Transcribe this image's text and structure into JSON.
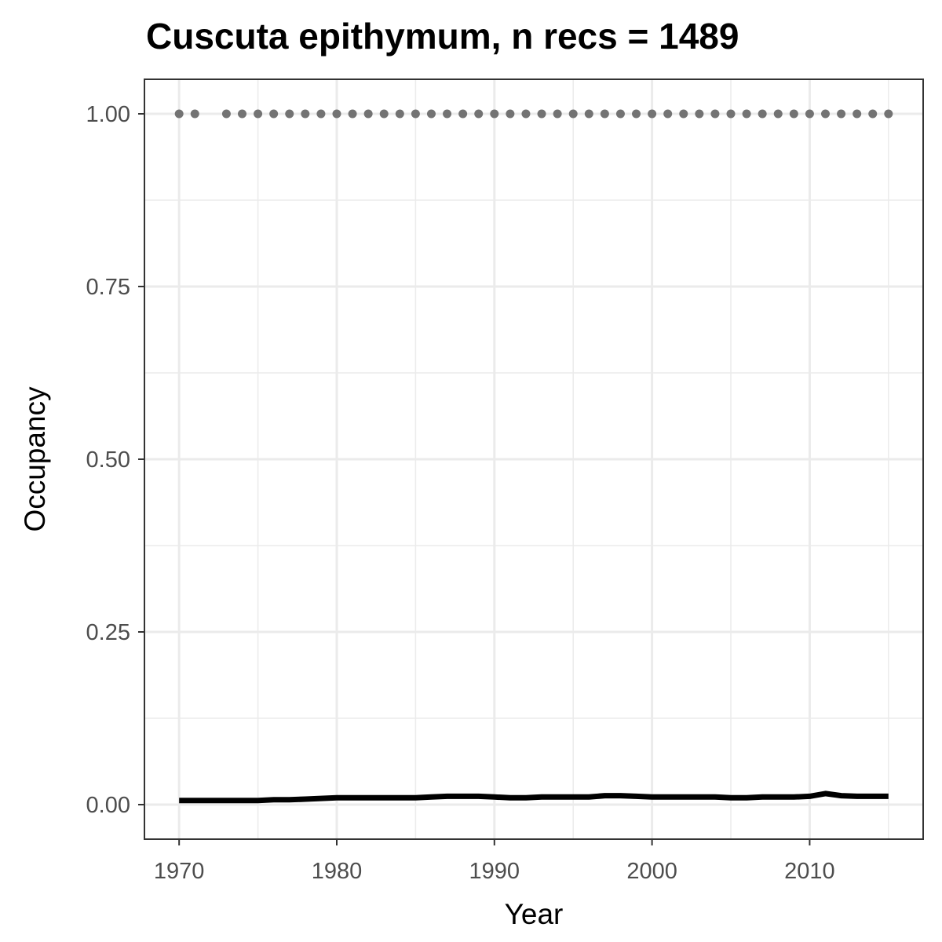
{
  "chart_data": {
    "type": "line",
    "title": "Cuscuta epithymum, n recs = 1489",
    "xlabel": "Year",
    "ylabel": "Occupancy",
    "xlim": [
      1967.8,
      2017.2
    ],
    "ylim": [
      -0.05,
      1.05
    ],
    "x_ticks": [
      1970,
      1980,
      1990,
      2000,
      2010
    ],
    "x_tick_labels": [
      "1970",
      "1980",
      "1990",
      "2000",
      "2010"
    ],
    "y_ticks": [
      0,
      0.25,
      0.5,
      0.75,
      1.0
    ],
    "y_tick_labels": [
      "0.00",
      "0.25",
      "0.50",
      "0.75",
      "1.00"
    ],
    "grid": true,
    "legend": "none",
    "colors": {
      "line": "#000000",
      "points": "#737373",
      "grid": "#ebebeb",
      "panel_border": "#333333"
    },
    "series": [
      {
        "kind": "line",
        "x": [
          1970,
          1971,
          1972,
          1973,
          1974,
          1975,
          1976,
          1977,
          1978,
          1979,
          1980,
          1981,
          1982,
          1983,
          1984,
          1985,
          1986,
          1987,
          1988,
          1989,
          1990,
          1991,
          1992,
          1993,
          1994,
          1995,
          1996,
          1997,
          1998,
          1999,
          2000,
          2001,
          2002,
          2003,
          2004,
          2005,
          2006,
          2007,
          2008,
          2009,
          2010,
          2011,
          2012,
          2013,
          2014,
          2015
        ],
        "values": [
          0.006,
          0.006,
          0.006,
          0.006,
          0.006,
          0.006,
          0.007,
          0.007,
          0.008,
          0.009,
          0.01,
          0.01,
          0.01,
          0.01,
          0.01,
          0.01,
          0.011,
          0.012,
          0.012,
          0.012,
          0.011,
          0.01,
          0.01,
          0.011,
          0.011,
          0.011,
          0.011,
          0.013,
          0.013,
          0.012,
          0.011,
          0.011,
          0.011,
          0.011,
          0.011,
          0.01,
          0.01,
          0.011,
          0.011,
          0.011,
          0.012,
          0.016,
          0.013,
          0.012,
          0.012,
          0.012
        ]
      },
      {
        "kind": "points",
        "x": [
          1970,
          1971,
          1973,
          1974,
          1975,
          1976,
          1977,
          1978,
          1979,
          1980,
          1981,
          1982,
          1983,
          1984,
          1985,
          1986,
          1987,
          1988,
          1989,
          1990,
          1991,
          1992,
          1993,
          1994,
          1995,
          1996,
          1997,
          1998,
          1999,
          2000,
          2001,
          2002,
          2003,
          2004,
          2005,
          2006,
          2007,
          2008,
          2009,
          2010,
          2011,
          2012,
          2013,
          2014,
          2015
        ],
        "values": [
          1,
          1,
          1,
          1,
          1,
          1,
          1,
          1,
          1,
          1,
          1,
          1,
          1,
          1,
          1,
          1,
          1,
          1,
          1,
          1,
          1,
          1,
          1,
          1,
          1,
          1,
          1,
          1,
          1,
          1,
          1,
          1,
          1,
          1,
          1,
          1,
          1,
          1,
          1,
          1,
          1,
          1,
          1,
          1,
          1
        ]
      }
    ]
  }
}
